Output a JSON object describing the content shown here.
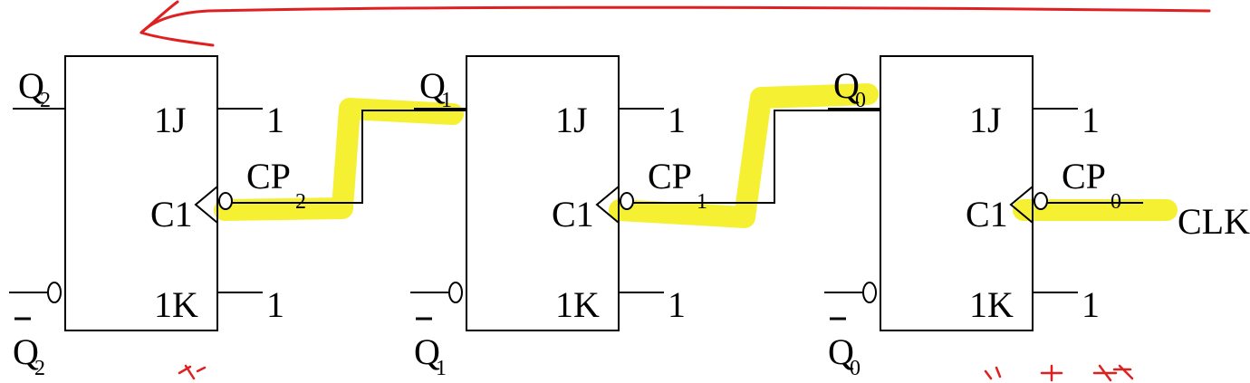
{
  "diagram": {
    "flip_flops": [
      {
        "name": "ff2",
        "q": "Q",
        "q_sub": "2",
        "nq": "Q",
        "nq_sub": "2",
        "j": "1J",
        "c": "C1",
        "k": "1K",
        "cp": "CP",
        "cp_sub": "2",
        "j_const": "1",
        "k_const": "1"
      },
      {
        "name": "ff1",
        "q": "Q",
        "q_sub": "1",
        "nq": "Q",
        "nq_sub": "1",
        "j": "1J",
        "c": "C1",
        "k": "1K",
        "cp": "CP",
        "cp_sub": "1",
        "j_const": "1",
        "k_const": "1"
      },
      {
        "name": "ff0",
        "q": "Q",
        "q_sub": "0",
        "nq": "Q",
        "nq_sub": "0",
        "j": "1J",
        "c": "C1",
        "k": "1K",
        "cp": "CP",
        "cp_sub": "0",
        "j_const": "1",
        "k_const": "1"
      }
    ],
    "clock_input": "CLK"
  },
  "colors": {
    "line": "#000000",
    "highlight": "#f5ee1c",
    "annotation": "#e02020"
  }
}
